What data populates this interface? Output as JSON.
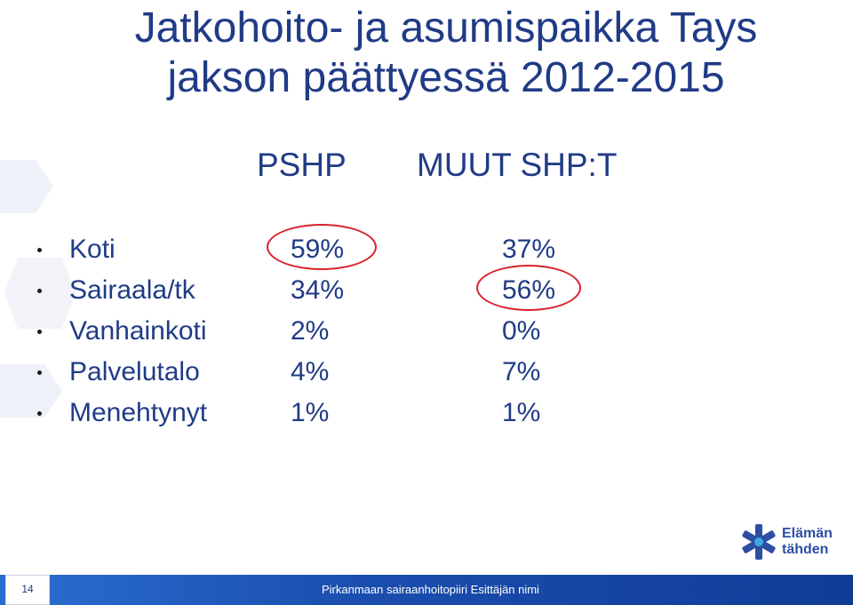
{
  "slide": {
    "title_line1": "Jatkohoito- ja asumispaikka Tays",
    "title_line2": "jakson päättyessä 2012-2015"
  },
  "columns": {
    "pshp": "PSHP",
    "muut": "MUUT SHP:T"
  },
  "rows": [
    {
      "label": "Koti",
      "pshp": "59%",
      "muut": "37%"
    },
    {
      "label": "Sairaala/tk",
      "pshp": "34%",
      "muut": "56%"
    },
    {
      "label": "Vanhainkoti",
      "pshp": "2%",
      "muut": "0%"
    },
    {
      "label": "Palvelutalo",
      "pshp": "4%",
      "muut": "7%"
    },
    {
      "label": "Menehtynyt",
      "pshp": "1%",
      "muut": "1%"
    }
  ],
  "logo": {
    "text_line1": "Elämän",
    "text_line2": "tähden"
  },
  "footer": {
    "page_number": "14",
    "text": "Pirkanmaan sairaanhoitopiiri  Esittäjän nimi"
  },
  "colors": {
    "title": "#203b86",
    "highlight_circle": "#d8232a",
    "footer_bar": "#1b4fb0"
  }
}
